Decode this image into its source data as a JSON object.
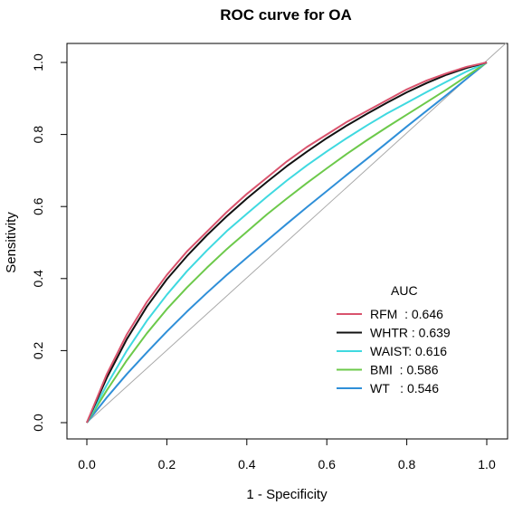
{
  "chart_data": {
    "type": "line",
    "title": "ROC curve for OA",
    "xlabel": "1 - Specificity",
    "ylabel": "Sensitivity",
    "xlim": [
      0.0,
      1.0
    ],
    "ylim": [
      0.0,
      1.0
    ],
    "xticks": [
      "0.0",
      "0.2",
      "0.4",
      "0.6",
      "0.8",
      "1.0"
    ],
    "yticks": [
      "0.0",
      "0.2",
      "0.4",
      "0.6",
      "0.8",
      "1.0"
    ],
    "grid": false,
    "legend": {
      "title": "AUC",
      "position": "bottom-right",
      "entries": [
        "RFM  : 0.646",
        "WHTR : 0.639",
        "WAIST: 0.616",
        "BMI  : 0.586",
        "WT   : 0.546"
      ]
    },
    "reference_line": {
      "x": [
        0,
        1
      ],
      "y": [
        0,
        1
      ],
      "color": "#aaaaaa"
    },
    "series": [
      {
        "name": "RFM",
        "color": "#d9536d",
        "x": [
          0,
          0.05,
          0.1,
          0.15,
          0.2,
          0.25,
          0.3,
          0.35,
          0.4,
          0.45,
          0.5,
          0.55,
          0.6,
          0.65,
          0.7,
          0.75,
          0.8,
          0.85,
          0.9,
          0.95,
          1.0
        ],
        "y": [
          0,
          0.135,
          0.245,
          0.335,
          0.41,
          0.475,
          0.53,
          0.585,
          0.635,
          0.68,
          0.725,
          0.765,
          0.8,
          0.835,
          0.865,
          0.895,
          0.925,
          0.95,
          0.97,
          0.988,
          1.0
        ]
      },
      {
        "name": "WHTR",
        "color": "#111111",
        "x": [
          0,
          0.05,
          0.1,
          0.15,
          0.2,
          0.25,
          0.3,
          0.35,
          0.4,
          0.45,
          0.5,
          0.55,
          0.6,
          0.65,
          0.7,
          0.75,
          0.8,
          0.85,
          0.9,
          0.95,
          1.0
        ],
        "y": [
          0,
          0.125,
          0.232,
          0.322,
          0.398,
          0.462,
          0.52,
          0.573,
          0.622,
          0.668,
          0.712,
          0.752,
          0.79,
          0.825,
          0.857,
          0.888,
          0.917,
          0.943,
          0.966,
          0.985,
          1.0
        ]
      },
      {
        "name": "WAIST",
        "color": "#3fd9e0",
        "x": [
          0,
          0.05,
          0.1,
          0.15,
          0.2,
          0.25,
          0.3,
          0.35,
          0.4,
          0.45,
          0.5,
          0.55,
          0.6,
          0.65,
          0.7,
          0.75,
          0.8,
          0.85,
          0.9,
          0.95,
          1.0
        ],
        "y": [
          0,
          0.105,
          0.2,
          0.283,
          0.355,
          0.42,
          0.478,
          0.532,
          0.58,
          0.627,
          0.672,
          0.714,
          0.753,
          0.79,
          0.825,
          0.858,
          0.888,
          0.918,
          0.947,
          0.975,
          1.0
        ]
      },
      {
        "name": "BMI",
        "color": "#6cc94a",
        "x": [
          0,
          0.05,
          0.1,
          0.15,
          0.2,
          0.25,
          0.3,
          0.35,
          0.4,
          0.45,
          0.5,
          0.55,
          0.6,
          0.65,
          0.7,
          0.75,
          0.8,
          0.85,
          0.9,
          0.95,
          1.0
        ],
        "y": [
          0,
          0.09,
          0.173,
          0.248,
          0.315,
          0.375,
          0.43,
          0.482,
          0.53,
          0.578,
          0.622,
          0.665,
          0.706,
          0.746,
          0.784,
          0.82,
          0.855,
          0.89,
          0.925,
          0.962,
          1.0
        ]
      },
      {
        "name": "WT",
        "color": "#2f8fd8",
        "x": [
          0,
          0.05,
          0.1,
          0.15,
          0.2,
          0.25,
          0.3,
          0.35,
          0.4,
          0.45,
          0.5,
          0.55,
          0.6,
          0.65,
          0.7,
          0.75,
          0.8,
          0.85,
          0.9,
          0.95,
          1.0
        ],
        "y": [
          0,
          0.07,
          0.135,
          0.195,
          0.253,
          0.308,
          0.36,
          0.41,
          0.458,
          0.505,
          0.552,
          0.598,
          0.643,
          0.688,
          0.732,
          0.777,
          0.822,
          0.866,
          0.91,
          0.955,
          1.0
        ]
      }
    ]
  }
}
